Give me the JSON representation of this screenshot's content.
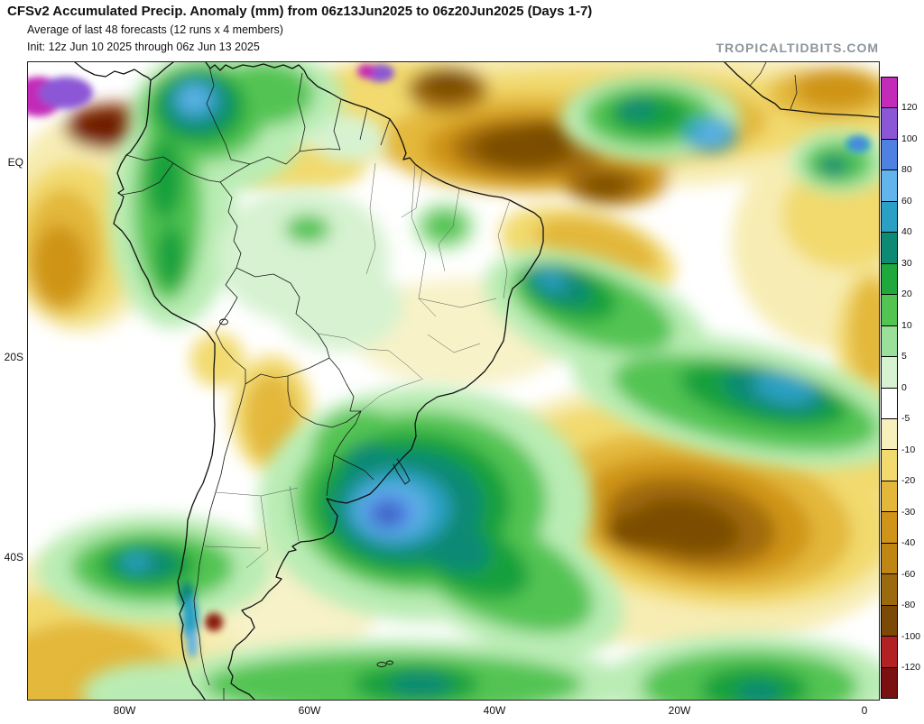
{
  "header": {
    "title": "CFSv2 Accumulated Precip. Anomaly (mm) from 06z13Jun2025 to 06z20Jun2025 (Days 1-7)",
    "subtitle": "Average of last 48 forecasts (12 runs x 4 members)",
    "init_line": "Init: 12z Jun 10 2025 through 06z Jun 13 2025",
    "watermark": "TROPICALTIDBITS.COM"
  },
  "chart_data": {
    "type": "heatmap",
    "title": "CFSv2 Accumulated Precip. Anomaly (mm) from 06z13Jun2025 to 06z20Jun2025 (Days 1-7)",
    "subtitle": "Average of last 48 forecasts (12 runs x 4 members)",
    "init": "Init: 12z Jun 10 2025 through 06z Jun 13 2025",
    "units": "mm",
    "region": "South America and adjacent Pacific / Atlantic",
    "lat_ticks": [
      "EQ",
      "20S",
      "40S"
    ],
    "lon_ticks": [
      "80W",
      "60W",
      "40W",
      "20W",
      "0"
    ],
    "scale": {
      "boundary_labels": [
        120,
        100,
        80,
        60,
        40,
        30,
        20,
        10,
        5,
        0,
        -5,
        -10,
        -20,
        -30,
        -40,
        -60,
        -80,
        -100,
        -120
      ],
      "segment_colors": [
        "#c22cb8",
        "#8c57d6",
        "#4f81e3",
        "#62b4ec",
        "#2aa0c4",
        "#0d8a74",
        "#1fa83c",
        "#52c452",
        "#9ae09a",
        "#d6f2d0",
        "#ffffff",
        "#f8f0bc",
        "#f2da6e",
        "#e3b83a",
        "#cf9418",
        "#bf8614",
        "#9c6a0e",
        "#7a4a06",
        "#b22222",
        "#7a1010"
      ]
    },
    "anomaly_centers": [
      {
        "region": "Uruguay / NE Argentina / S Brazil",
        "approx_anomaly_mm": 80
      },
      {
        "region": "Northern Brazil / western Atlantic ITCZ",
        "approx_anomaly_mm": -80
      },
      {
        "region": "Central South Atlantic near 30S",
        "approx_anomaly_mm": -60
      },
      {
        "region": "SW Atlantic diagonal band 25-35S",
        "approx_anomaly_mm": 50
      },
      {
        "region": "Andes of Colombia / Ecuador",
        "approx_anomaly_mm": 30
      },
      {
        "region": "SE Pacific off central Chile",
        "approx_anomaly_mm": 40
      },
      {
        "region": "Far NW corner (SW Caribbean / E Pacific)",
        "approx_anomaly_mm": 120
      },
      {
        "region": "East Brazil coast (Bahia)",
        "approx_anomaly_mm": 30
      },
      {
        "region": "Gulf of Guinea near 0W",
        "approx_anomaly_mm": 40
      },
      {
        "region": "Bolivia / NW Argentina Andes",
        "approx_anomaly_mm": -25
      }
    ]
  }
}
